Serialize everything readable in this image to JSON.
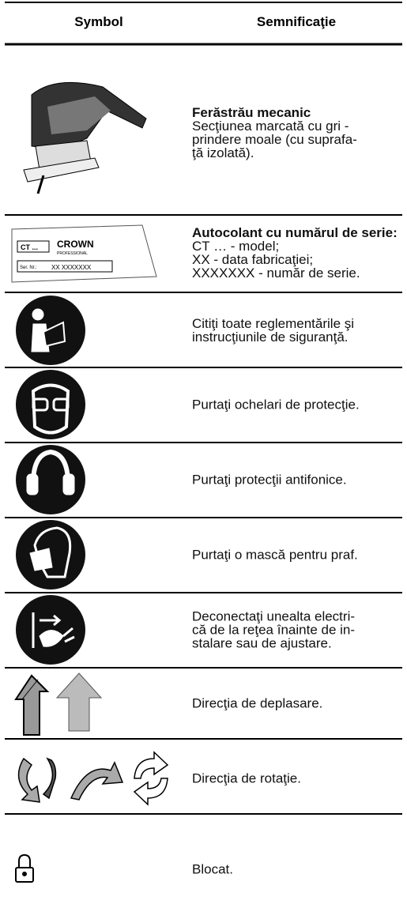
{
  "header": {
    "symbol": "Symbol",
    "meaning": "Semnificaţie"
  },
  "sticker": {
    "model": "CT ...",
    "brand": "CROWN",
    "brand_sub": "PROFESSIONAL",
    "serial_label": "Ser. Nr.:",
    "serial": "XX XXXXXXX"
  },
  "rows": [
    {
      "title": "Ferăstrău mecanic",
      "lines": [
        "Secţiunea marcată cu gri -",
        "prindere moale (cu suprafa-",
        "ţă izolată)."
      ]
    },
    {
      "title": "Autocolant cu numărul de serie:",
      "lines": [
        "CT … - model;",
        "XX - data fabricaţiei;",
        "XXXXXXX - număr de serie."
      ]
    },
    {
      "lines": [
        "Citiţi toate reglementările şi",
        "instrucţiunile de siguranţă."
      ]
    },
    {
      "lines": [
        "Purtaţi ochelari de protecţie."
      ]
    },
    {
      "lines": [
        "Purtaţi protecţii antifonice."
      ]
    },
    {
      "lines": [
        "Purtaţi o mască pentru praf."
      ]
    },
    {
      "lines": [
        "Deconectaţi unealta electri-",
        "că de la reţea înainte de in-",
        "stalare sau de ajustare."
      ]
    },
    {
      "lines": [
        "Direcţia de deplasare."
      ]
    },
    {
      "lines": [
        "Direcţia de rotaţie."
      ]
    },
    {
      "lines": [
        "Blocat."
      ]
    }
  ]
}
